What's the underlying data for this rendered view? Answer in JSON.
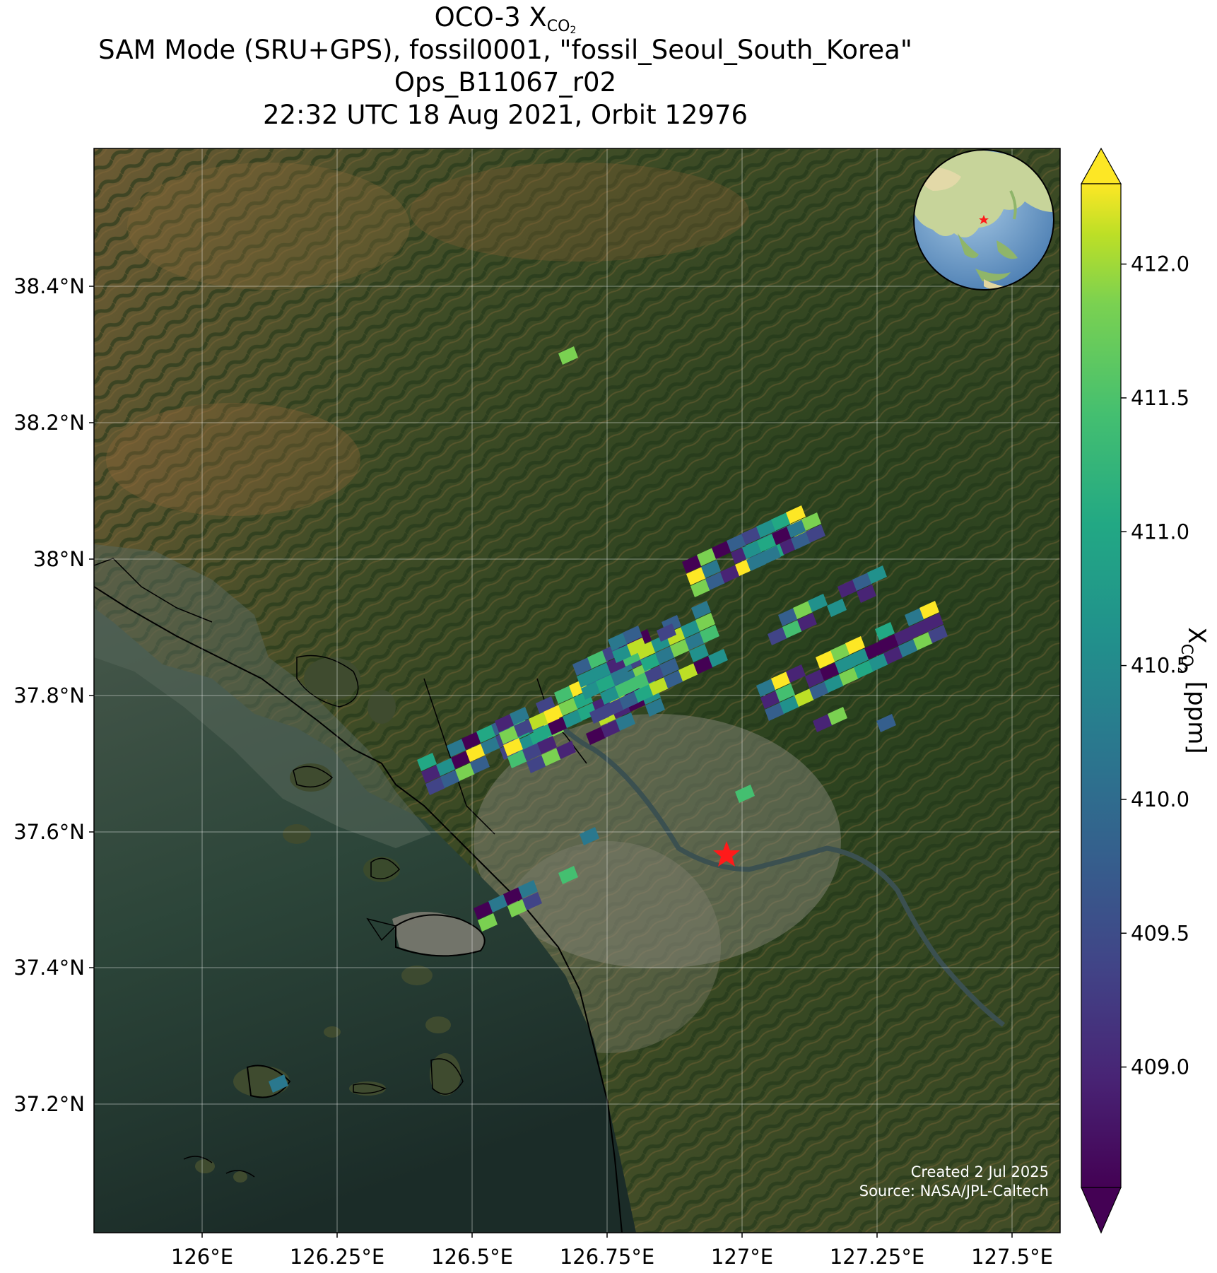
{
  "title": {
    "line1_prefix": "OCO-3 X",
    "line1_sub": "CO",
    "line1_sub2": "2",
    "line2": "SAM Mode (SRU+GPS), fossil0001, \"fossil_Seoul_South_Korea\"",
    "line3": "Ops_B11067_r02",
    "line4": "22:32 UTC 18 Aug 2021, Orbit 12976"
  },
  "axes": {
    "lon_ticks": [
      "126°E",
      "126.25°E",
      "126.5°E",
      "126.75°E",
      "127°E",
      "127.25°E",
      "127.5°E"
    ],
    "lat_ticks": [
      "38.4°N",
      "38.2°N",
      "38°N",
      "37.8°N",
      "37.6°N",
      "37.4°N",
      "37.2°N"
    ]
  },
  "colorbar": {
    "label_prefix": "X",
    "label_sub": "CO",
    "label_sub2": "2",
    "label_unit": " [ppm]",
    "ticks": [
      "412.0",
      "411.5",
      "411.0",
      "410.5",
      "410.0",
      "409.5",
      "409.0"
    ],
    "range": [
      408.55,
      412.3
    ],
    "colormap": "viridis",
    "extend": "both"
  },
  "target": {
    "name": "fossil_Seoul_South_Korea",
    "marker": "red-star",
    "color": "#ff0000"
  },
  "inset_globe": {
    "marker": "red-star"
  },
  "credits": {
    "line1": "Created 2 Jul 2025",
    "line2": "Source: NASA/JPL-Caltech"
  },
  "colors": {
    "land": "#3c4a2a",
    "water": "#2f4638",
    "target": "#ff0000"
  }
}
